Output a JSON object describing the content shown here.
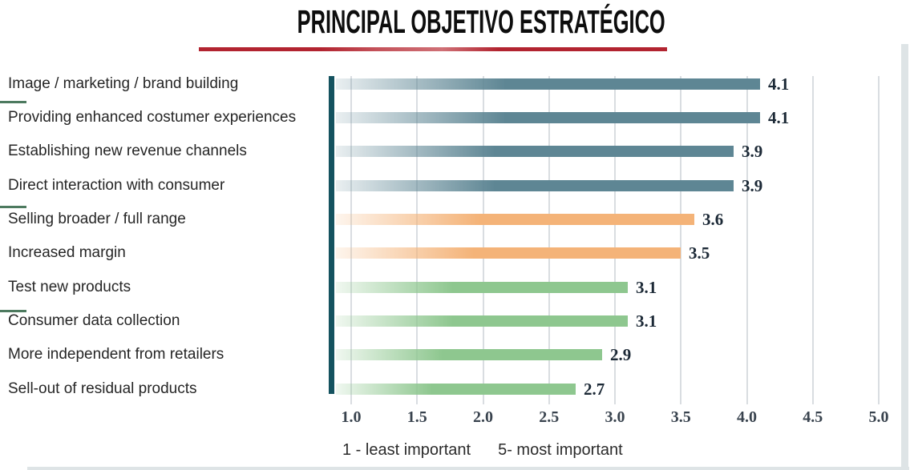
{
  "title": "PRINCIPAL OBJETIVO ESTRATÉGICO",
  "title_underline_color": "#b22430",
  "frame_border_color": "#dee4e6",
  "chart_data": {
    "type": "bar",
    "orientation": "horizontal",
    "title": "PRINCIPAL OBJETIVO ESTRATÉGICO",
    "categories": [
      "Image / marketing / brand building",
      "Providing enhanced costumer experiences",
      "Establishing new revenue channels",
      "Direct interaction with consumer",
      "Selling broader / full range",
      "Increased margin",
      "Test new products",
      "Consumer data collection",
      "More independent from retailers",
      "Sell-out of residual products"
    ],
    "values": [
      4.1,
      4.1,
      3.9,
      3.9,
      3.6,
      3.5,
      3.1,
      3.1,
      2.9,
      2.7
    ],
    "bar_colors": [
      "#5e8694",
      "#5e8694",
      "#5e8694",
      "#5e8694",
      "#f4b378",
      "#f4b378",
      "#8ec78f",
      "#8ec78f",
      "#8ec78f",
      "#8ec78f"
    ],
    "x_ticks": [
      "1.0",
      "1.5",
      "2.0",
      "2.5",
      "3.0",
      "3.5",
      "4.0",
      "4.5",
      "5.0"
    ],
    "xlim": [
      0.86,
      5.0
    ],
    "grid": true,
    "grid_color": "#d9dde1",
    "axis_color": "#14525f",
    "category_tick_color": "#4d7a5f",
    "value_label_color": "#1c2936",
    "tick_label_color": "#39434e",
    "category_label_color": "#262626",
    "note_left": "1 - least important",
    "note_right": "5- most important"
  }
}
